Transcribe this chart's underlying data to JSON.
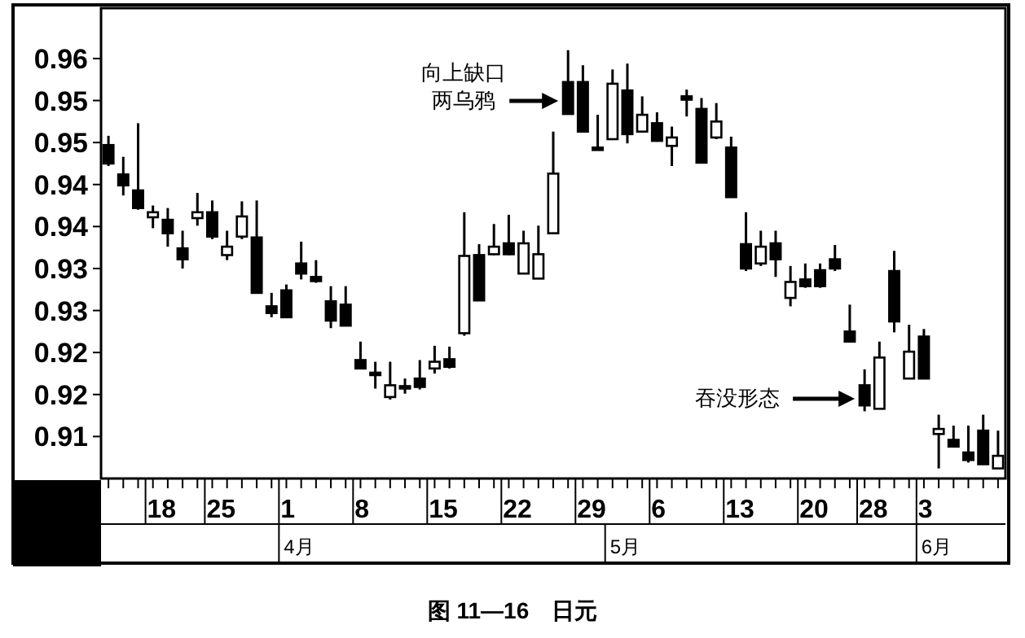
{
  "chart_data": {
    "type": "candlestick",
    "title": "图 11—16　日元",
    "categories": [
      null,
      null,
      null,
      "18",
      null,
      null,
      null,
      "25",
      null,
      null,
      null,
      null,
      "1",
      null,
      null,
      null,
      null,
      "8",
      null,
      null,
      null,
      null,
      "15",
      null,
      null,
      null,
      null,
      "22",
      null,
      null,
      null,
      null,
      "29",
      null,
      null,
      null,
      null,
      "6",
      null,
      null,
      null,
      null,
      "13",
      null,
      null,
      null,
      null,
      "20",
      null,
      null,
      null,
      "28",
      null,
      null,
      null,
      "3",
      null,
      null,
      null,
      null,
      null
    ],
    "ohlc": [
      [
        0.9497,
        0.9508,
        0.9472,
        0.9475
      ],
      [
        0.9462,
        0.9483,
        0.9437,
        0.9449
      ],
      [
        0.9443,
        0.9523,
        0.942,
        0.9422
      ],
      [
        0.9411,
        0.9425,
        0.9398,
        0.9417
      ],
      [
        0.9408,
        0.9422,
        0.9376,
        0.9392
      ],
      [
        0.9374,
        0.9395,
        0.935,
        0.9361
      ],
      [
        0.941,
        0.944,
        0.9401,
        0.9417
      ],
      [
        0.9417,
        0.9431,
        0.9385,
        0.9388
      ],
      [
        0.9366,
        0.9395,
        0.936,
        0.9376
      ],
      [
        0.9388,
        0.943,
        0.9385,
        0.9412
      ],
      [
        0.9387,
        0.9431,
        0.9321,
        0.9321
      ],
      [
        0.9305,
        0.9321,
        0.9292,
        0.9297
      ],
      [
        0.9324,
        0.9331,
        0.9292,
        0.9292
      ],
      [
        0.9356,
        0.9382,
        0.9337,
        0.9344
      ],
      [
        0.934,
        0.936,
        0.9333,
        0.9335
      ],
      [
        0.9311,
        0.9329,
        0.9279,
        0.9288
      ],
      [
        0.9307,
        0.9329,
        0.9282,
        0.9282
      ],
      [
        0.9241,
        0.9263,
        0.9231,
        0.9231
      ],
      [
        0.9226,
        0.9239,
        0.9207,
        0.9225
      ],
      [
        0.9197,
        0.9239,
        0.9194,
        0.9211
      ],
      [
        0.921,
        0.9219,
        0.9201,
        0.9209
      ],
      [
        0.9219,
        0.9241,
        0.9206,
        0.9209
      ],
      [
        0.9231,
        0.9258,
        0.9225,
        0.9239
      ],
      [
        0.9242,
        0.9257,
        0.9231,
        0.9233
      ],
      [
        0.9273,
        0.9417,
        0.927,
        0.9365
      ],
      [
        0.9366,
        0.9379,
        0.9312,
        0.9312
      ],
      [
        0.9367,
        0.9403,
        0.9366,
        0.9376
      ],
      [
        0.938,
        0.9414,
        0.9366,
        0.9367
      ],
      [
        0.9344,
        0.9395,
        0.9344,
        0.938
      ],
      [
        0.9338,
        0.9401,
        0.9338,
        0.9367
      ],
      [
        0.9392,
        0.9513,
        0.9392,
        0.9463
      ],
      [
        0.9572,
        0.961,
        0.9534,
        0.9534
      ],
      [
        0.9572,
        0.9592,
        0.9513,
        0.9513
      ],
      [
        0.9494,
        0.9533,
        0.9491,
        0.9493
      ],
      [
        0.9504,
        0.9587,
        0.9504,
        0.957
      ],
      [
        0.9562,
        0.9594,
        0.9499,
        0.951
      ],
      [
        0.9513,
        0.9555,
        0.9513,
        0.9533
      ],
      [
        0.9523,
        0.9536,
        0.9501,
        0.9502
      ],
      [
        0.9496,
        0.9519,
        0.9472,
        0.9506
      ],
      [
        0.9555,
        0.9563,
        0.9531,
        0.9551
      ],
      [
        0.954,
        0.9553,
        0.9476,
        0.9476
      ],
      [
        0.9506,
        0.9547,
        0.9504,
        0.9525
      ],
      [
        0.9494,
        0.9507,
        0.9435,
        0.9435
      ],
      [
        0.9379,
        0.9417,
        0.9347,
        0.935
      ],
      [
        0.9356,
        0.9395,
        0.9353,
        0.9376
      ],
      [
        0.938,
        0.9395,
        0.934,
        0.9361
      ],
      [
        0.9315,
        0.9353,
        0.9305,
        0.9334
      ],
      [
        0.9337,
        0.9356,
        0.9327,
        0.9329
      ],
      [
        0.9348,
        0.9356,
        0.9327,
        0.9329
      ],
      [
        0.9361,
        0.9378,
        0.9347,
        0.935
      ],
      [
        0.9275,
        0.9307,
        0.9263,
        0.9263
      ],
      [
        0.9211,
        0.923,
        0.918,
        0.9187
      ],
      [
        0.9183,
        0.9263,
        0.9183,
        0.9244
      ],
      [
        0.9347,
        0.9371,
        0.9274,
        0.9287
      ],
      [
        0.9219,
        0.9283,
        0.9219,
        0.9251
      ],
      [
        0.9269,
        0.9278,
        0.9219,
        0.9219
      ],
      [
        0.9153,
        0.9176,
        0.9112,
        0.9159
      ],
      [
        0.9146,
        0.9163,
        0.9138,
        0.9138
      ],
      [
        0.9131,
        0.9163,
        0.9119,
        0.9122
      ],
      [
        0.9157,
        0.9176,
        0.9117,
        0.9117
      ],
      [
        0.9112,
        0.9157,
        0.9112,
        0.9127
      ]
    ],
    "ylim": [
      0.91,
      0.966
    ],
    "yticks": [
      {
        "value": 0.96,
        "label": "0.96"
      },
      {
        "value": 0.955,
        "label": "0.95"
      },
      {
        "value": 0.95,
        "label": "0.95"
      },
      {
        "value": 0.945,
        "label": "0.94"
      },
      {
        "value": 0.94,
        "label": "0.94"
      },
      {
        "value": 0.935,
        "label": "0.93"
      },
      {
        "value": 0.93,
        "label": "0.93"
      },
      {
        "value": 0.925,
        "label": "0.92"
      },
      {
        "value": 0.92,
        "label": "0.92"
      },
      {
        "value": 0.915,
        "label": "0.91"
      }
    ],
    "annotations": [
      "向上缺口",
      "两乌鸦",
      "吞没形态",
      "4月",
      "5月",
      "6月"
    ]
  }
}
